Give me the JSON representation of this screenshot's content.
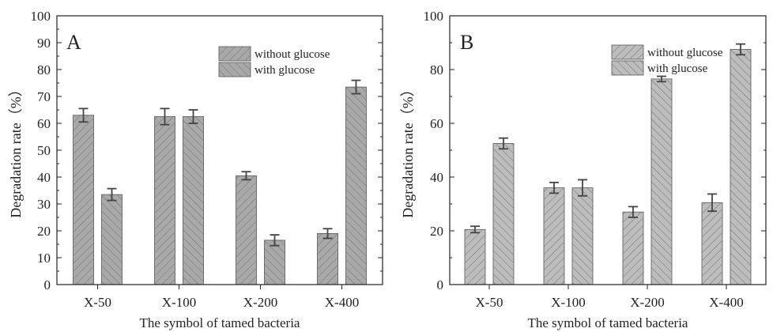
{
  "chart_data": [
    {
      "type": "bar",
      "panel_label": "A",
      "categories": [
        "X-50",
        "X-100",
        "X-200",
        "X-400"
      ],
      "series": [
        {
          "name": "without glucose",
          "values": [
            63,
            62.5,
            40.5,
            19
          ],
          "errors": [
            2.5,
            3,
            1.5,
            1.8
          ],
          "hatch": "forward-diagonal"
        },
        {
          "name": "with glucose",
          "values": [
            33.5,
            62.5,
            16.5,
            73.5
          ],
          "errors": [
            2.2,
            2.5,
            2.0,
            2.5
          ],
          "hatch": "back-diagonal"
        }
      ],
      "xlabel": "The symbol of tamed bacteria",
      "ylabel": "Degradation rate（%）",
      "ylim": [
        0,
        100
      ],
      "yticks": [
        0,
        10,
        20,
        30,
        40,
        50,
        60,
        70,
        80,
        90,
        100
      ],
      "legend_position": "top-right",
      "grid": false
    },
    {
      "type": "bar",
      "panel_label": "B",
      "categories": [
        "X-50",
        "X-100",
        "X-200",
        "X-400"
      ],
      "series": [
        {
          "name": "without glucose",
          "values": [
            20.5,
            36,
            27,
            30.5
          ],
          "errors": [
            1.2,
            2.0,
            2.0,
            3.2
          ],
          "hatch": "forward-diagonal"
        },
        {
          "name": "with glucose",
          "values": [
            52.5,
            36,
            76.5,
            87.5
          ],
          "errors": [
            2.0,
            3.0,
            1.0,
            2.0
          ],
          "hatch": "back-diagonal"
        }
      ],
      "xlabel": "The symbol of tamed bacteria",
      "ylabel": "Degradation rate（%）",
      "ylim": [
        0,
        100
      ],
      "yticks": [
        0,
        20,
        40,
        60,
        80,
        100
      ],
      "legend_position": "top-right",
      "grid": false
    }
  ],
  "colors": {
    "panel_a_bar": "#a9a9a9",
    "panel_b_bar": "#bdbdbd",
    "hatch": "#6e6e6e",
    "axis": "#222222",
    "error_bar": "#444444"
  }
}
